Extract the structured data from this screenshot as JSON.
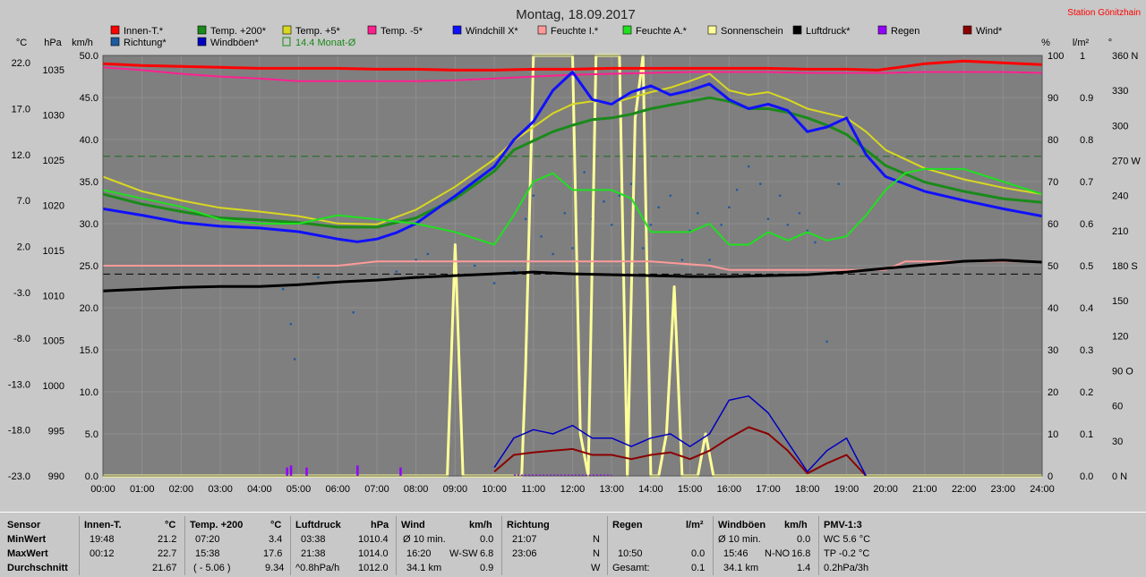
{
  "title": "Montag, 18.09.2017",
  "station": "Station Gönitzhain",
  "colors": {
    "innen": "#ff0000",
    "richtung": "#1e5aa0",
    "temp200": "#1a8a1a",
    "windboeen": "#0000c0",
    "temp5": "#d8d820",
    "monat": "#1a8a1a",
    "tempm5": "#ff2090",
    "windchill": "#1010ff",
    "feuchtei": "#ff9a9a",
    "feuchtea": "#20e020",
    "sonne": "#ffff99",
    "luftdruck": "#000000",
    "regen": "#9400ff",
    "wind": "#8b0000",
    "plot_bg": "#7f7f7f"
  },
  "legend": [
    {
      "label": "Innen-T.*",
      "color": "#ff0000"
    },
    {
      "label": "Temp. +200*",
      "color": "#1a8a1a"
    },
    {
      "label": "Temp. +5*",
      "color": "#d8d820"
    },
    {
      "label": "Temp. -5*",
      "color": "#ff2090"
    },
    {
      "label": "Windchill X*",
      "color": "#1010ff"
    },
    {
      "label": "Feuchte I.*",
      "color": "#ff9a9a"
    },
    {
      "label": "Feuchte A.*",
      "color": "#20e020"
    },
    {
      "label": "Sonnenschein",
      "color": "#ffff99"
    },
    {
      "label": "Luftdruck*",
      "color": "#000000"
    },
    {
      "label": "Regen",
      "color": "#9400ff"
    },
    {
      "label": "Wind*",
      "color": "#8b0000"
    },
    {
      "label": "Richtung*",
      "color": "#1e5aa0"
    },
    {
      "label": "Windböen*",
      "color": "#0000c0"
    },
    {
      "label": "14.4 Monat-Ø",
      "color": "#1a8a1a"
    }
  ],
  "chart_data": {
    "type": "line",
    "axes": {
      "units": {
        "degc": "°C",
        "hpa": "hPa",
        "kmh": "km/h",
        "pct": "%",
        "lm2": "l/m²",
        "deg": "°"
      },
      "degc_ticks": [
        "22.0",
        "17.0",
        "12.0",
        "7.0",
        "2.0",
        "-3.0",
        "-8.0",
        "-13.0",
        "-18.0",
        "-23.0"
      ],
      "hpa_ticks": [
        "1035",
        "1030",
        "1025",
        "1020",
        "1015",
        "1010",
        "1005",
        "1000",
        "995",
        "990"
      ],
      "kmh_ticks": [
        "50.0",
        "45.0",
        "40.0",
        "35.0",
        "30.0",
        "25.0",
        "20.0",
        "15.0",
        "10.0",
        "5.0",
        "0.0"
      ],
      "pct_ticks": [
        "100",
        "90",
        "80",
        "70",
        "60",
        "50",
        "40",
        "30",
        "20",
        "10",
        "0"
      ],
      "lm2_ticks": [
        "1",
        "0.9",
        "0.8",
        "0.7",
        "0.6",
        "0.5",
        "0.4",
        "0.3",
        "0.2",
        "0.1",
        "0.0"
      ],
      "deg_ticks": [
        "360 N",
        "330",
        "300",
        "270 W",
        "240",
        "210",
        "180 S",
        "150",
        "120",
        "90 O",
        "60",
        "30",
        "0 N"
      ],
      "x_ticks": [
        "00:00",
        "01:00",
        "02:00",
        "03:00",
        "04:00",
        "05:00",
        "06:00",
        "07:00",
        "08:00",
        "09:00",
        "10:00",
        "11:00",
        "12:00",
        "13:00",
        "14:00",
        "15:00",
        "16:00",
        "17:00",
        "18:00",
        "19:00",
        "20:00",
        "21:00",
        "22:00",
        "23:00",
        "24:00"
      ],
      "degc_range": [
        -23,
        22.8
      ],
      "hpa_range": [
        990,
        1036.6
      ],
      "kmh_range": [
        0,
        50
      ],
      "pct_range": [
        0,
        100
      ],
      "deg_range": [
        0,
        360
      ],
      "x_range": [
        0,
        24
      ]
    },
    "monat_avg_degc": 14.4,
    "ref_lines_kmh": [
      38.0,
      24.0
    ],
    "series": [
      {
        "name": "Innen-T.*",
        "axis": "degc",
        "color": "#ff0000",
        "width": 3,
        "x": [
          0,
          1,
          2,
          3,
          4,
          5,
          6,
          7,
          8,
          9,
          10,
          11,
          12,
          13,
          14,
          15,
          16,
          17,
          18,
          19,
          19.8,
          20.5,
          21,
          22,
          23,
          24
        ],
        "y": [
          21.9,
          21.7,
          21.6,
          21.5,
          21.4,
          21.4,
          21.4,
          21.3,
          21.3,
          21.2,
          21.2,
          21.3,
          21.3,
          21.4,
          21.4,
          21.4,
          21.4,
          21.4,
          21.3,
          21.3,
          21.2,
          21.6,
          21.9,
          22.2,
          22.0,
          21.8
        ]
      },
      {
        "name": "Temp. -5*",
        "axis": "degc",
        "color": "#ff2090",
        "width": 2,
        "x": [
          0,
          1,
          2,
          3,
          4,
          5,
          6,
          7,
          8,
          9,
          10,
          11,
          12,
          13,
          14,
          15,
          16,
          17,
          18,
          19,
          20,
          21,
          22,
          23,
          24
        ],
        "y": [
          21.5,
          21.2,
          20.8,
          20.5,
          20.3,
          20.0,
          20.0,
          20.0,
          20.0,
          20.1,
          20.3,
          20.5,
          20.7,
          20.8,
          20.9,
          21.0,
          21.0,
          21.0,
          20.9,
          20.9,
          20.9,
          21.0,
          21.0,
          21.0,
          20.9
        ]
      },
      {
        "name": "Feuchte I.*",
        "axis": "pct",
        "color": "#ff9a9a",
        "width": 2,
        "x": [
          0,
          2,
          4,
          6,
          7,
          8,
          10,
          12,
          14,
          15.5,
          16,
          18,
          19,
          20,
          20.5,
          21,
          22,
          24
        ],
        "y": [
          50,
          50,
          50,
          50,
          51,
          51,
          51,
          51,
          51,
          50,
          49,
          49,
          49,
          49,
          51,
          51,
          51,
          51
        ]
      },
      {
        "name": "Luftdruck*",
        "axis": "hpa",
        "color": "#000000",
        "width": 3,
        "x": [
          0,
          1,
          2,
          3,
          4,
          5,
          6,
          7,
          8,
          9,
          10,
          11,
          12,
          13,
          14,
          15,
          16,
          17,
          18,
          19,
          20,
          21,
          22,
          23,
          24
        ],
        "y": [
          1010.5,
          1010.7,
          1010.9,
          1011.0,
          1011.0,
          1011.2,
          1011.5,
          1011.7,
          1012.0,
          1012.2,
          1012.4,
          1012.6,
          1012.4,
          1012.3,
          1012.2,
          1012.1,
          1012.1,
          1012.2,
          1012.3,
          1012.6,
          1013.0,
          1013.4,
          1013.8,
          1013.9,
          1013.7
        ]
      },
      {
        "name": "Temp. +200*",
        "axis": "degc",
        "color": "#1a8a1a",
        "width": 3,
        "x": [
          0,
          1,
          2,
          3,
          4,
          5,
          6,
          7,
          8,
          9,
          10,
          10.5,
          11,
          11.5,
          12,
          12.5,
          13,
          13.5,
          14,
          14.5,
          15,
          15.5,
          16,
          16.5,
          17,
          17.5,
          18,
          18.5,
          19,
          19.5,
          20,
          21,
          22,
          23,
          24
        ],
        "y": [
          7.7,
          6.6,
          5.8,
          5.1,
          4.9,
          4.6,
          4.1,
          4.1,
          5.1,
          7.2,
          10.2,
          12.5,
          13.5,
          14.5,
          15.2,
          15.8,
          16.0,
          16.4,
          17.0,
          17.4,
          17.8,
          18.2,
          17.8,
          17.0,
          17.0,
          16.6,
          16.0,
          15.2,
          14.2,
          12.5,
          10.8,
          9.0,
          8.0,
          7.2,
          6.8
        ]
      },
      {
        "name": "Temp. +5*",
        "axis": "degc",
        "color": "#d8d820",
        "width": 2,
        "x": [
          0,
          1,
          2,
          3,
          4,
          5,
          6,
          7,
          8,
          9,
          10,
          10.5,
          11,
          11.5,
          12,
          12.5,
          13,
          13.5,
          14,
          14.5,
          15,
          15.5,
          16,
          16.5,
          17,
          17.5,
          18,
          18.5,
          19,
          19.5,
          20,
          21,
          22,
          23,
          24
        ],
        "y": [
          9.6,
          8.0,
          7.0,
          6.2,
          5.8,
          5.3,
          4.5,
          4.4,
          6.0,
          8.5,
          11.5,
          13.5,
          15.0,
          16.5,
          17.5,
          17.8,
          17.6,
          18.2,
          18.8,
          19.3,
          20.0,
          20.8,
          19.0,
          18.5,
          18.8,
          18.0,
          17.0,
          16.5,
          16.0,
          14.5,
          12.5,
          10.5,
          9.3,
          8.4,
          7.7
        ]
      },
      {
        "name": "Windchill X*",
        "axis": "degc",
        "color": "#1010ff",
        "width": 3,
        "x": [
          0,
          1,
          2,
          3,
          4,
          5,
          6,
          6.5,
          7,
          7.5,
          8,
          9,
          10,
          10.5,
          11,
          11.5,
          12,
          12.5,
          13,
          13.5,
          14,
          14.5,
          15,
          15.5,
          16,
          16.5,
          17,
          17.5,
          18,
          18.5,
          19,
          19.5,
          20,
          21,
          22,
          23,
          24
        ],
        "y": [
          6.1,
          5.4,
          4.6,
          4.2,
          4.0,
          3.6,
          2.8,
          2.5,
          2.8,
          3.5,
          4.5,
          7.5,
          10.7,
          13.6,
          15.6,
          19.0,
          21.0,
          18.0,
          17.5,
          18.8,
          19.5,
          18.5,
          19.0,
          19.7,
          18.0,
          17.0,
          17.5,
          16.8,
          14.5,
          15.0,
          16.0,
          12.0,
          9.6,
          8.0,
          7.0,
          6.1,
          5.3
        ]
      },
      {
        "name": "Feuchte A.*",
        "axis": "pct",
        "color": "#20e020",
        "width": 2,
        "x": [
          0,
          1,
          2,
          3,
          4,
          5,
          6,
          7,
          8,
          9,
          10,
          10.5,
          11,
          11.5,
          12,
          12.5,
          13,
          13.5,
          14,
          14.5,
          15,
          15.5,
          16,
          16.5,
          17,
          17.5,
          18,
          18.5,
          19,
          19.5,
          20,
          20.5,
          21,
          22,
          23,
          24
        ],
        "y": [
          68,
          66,
          64,
          61,
          60,
          60,
          62,
          61,
          60,
          58,
          55,
          62,
          70,
          72,
          68,
          68,
          68,
          66,
          58,
          58,
          58,
          60,
          55,
          55,
          58,
          56,
          58,
          56,
          57,
          62,
          68,
          72,
          73,
          73,
          70,
          67
        ]
      },
      {
        "name": "Wind*",
        "axis": "kmh",
        "color": "#8b0000",
        "width": 2,
        "x": [
          10,
          10.5,
          11,
          11.5,
          12,
          12.5,
          13,
          13.5,
          14,
          14.5,
          15,
          15.5,
          16,
          16.5,
          17,
          17.5,
          18,
          18.5,
          19,
          19.5
        ],
        "y": [
          0.5,
          2.5,
          2.8,
          3.0,
          3.2,
          2.5,
          2.5,
          2.0,
          2.5,
          2.8,
          2.0,
          3.0,
          4.5,
          5.8,
          5.0,
          3.0,
          0.3,
          1.5,
          2.5,
          0
        ]
      },
      {
        "name": "Windböen*",
        "axis": "kmh",
        "color": "#0000c0",
        "width": 1.5,
        "x": [
          10,
          10.5,
          11,
          11.5,
          12,
          12.5,
          13,
          13.5,
          14,
          14.5,
          15,
          15.5,
          16,
          16.5,
          17,
          17.5,
          18,
          18.5,
          19,
          19.5
        ],
        "y": [
          1.0,
          4.5,
          5.5,
          5.0,
          6.0,
          4.5,
          4.5,
          3.5,
          4.5,
          5.0,
          3.5,
          5.0,
          9.0,
          9.5,
          7.5,
          4.0,
          0.5,
          3.0,
          4.5,
          0
        ]
      }
    ],
    "sunshine": {
      "name": "Sonnenschein",
      "axis": "pct",
      "color": "#ffff99",
      "x": [
        0,
        8.8,
        9.0,
        9.2,
        9.4,
        9.6,
        10.0,
        10.5,
        10.7,
        10.8,
        11.0,
        11.2,
        11.4,
        11.5,
        11.8,
        12.0,
        12.2,
        12.4,
        12.6,
        12.8,
        13.0,
        13.2,
        13.4,
        13.6,
        13.8,
        14.0,
        14.2,
        14.4,
        14.6,
        14.8,
        15.0,
        15.2,
        15.4,
        15.6,
        16,
        24
      ],
      "y": [
        0,
        0,
        55,
        0,
        0,
        0,
        0,
        0,
        0,
        25,
        100,
        100,
        100,
        100,
        100,
        100,
        10,
        0,
        100,
        100,
        100,
        100,
        0,
        85,
        100,
        0,
        0,
        10,
        45,
        0,
        0,
        0,
        10,
        0,
        0,
        0
      ]
    },
    "direction_deg": {
      "name": "Richtung*",
      "color": "#1e5aa0",
      "x": [
        4.6,
        4.8,
        4.9,
        5.5,
        6.4,
        7.5,
        8.0,
        8.3,
        9.5,
        10.0,
        10.5,
        10.8,
        11.0,
        11.2,
        11.5,
        11.8,
        12.0,
        12.3,
        12.5,
        12.8,
        13.0,
        13.2,
        13.5,
        13.8,
        14.0,
        14.2,
        14.5,
        14.8,
        15.0,
        15.2,
        15.5,
        15.8,
        16.0,
        16.2,
        16.5,
        16.8,
        17.0,
        17.3,
        17.5,
        17.8,
        18.0,
        18.2,
        18.5,
        18.8
      ],
      "y": [
        160,
        130,
        100,
        170,
        140,
        175,
        185,
        190,
        180,
        165,
        175,
        220,
        240,
        205,
        190,
        225,
        195,
        260,
        220,
        235,
        215,
        240,
        250,
        195,
        215,
        230,
        240,
        185,
        210,
        225,
        185,
        215,
        230,
        245,
        265,
        250,
        220,
        240,
        215,
        225,
        210,
        200,
        115,
        250
      ]
    },
    "rain_lm2": {
      "name": "Regen",
      "color": "#9400ff",
      "x": [
        4.7,
        4.8,
        5.2,
        6.5,
        7.6
      ],
      "y": [
        0.02,
        0.025,
        0.02,
        0.025,
        0.02
      ]
    }
  },
  "table": {
    "rows": [
      "Sensor",
      "MinWert",
      "MaxWert",
      "Durchschnitt"
    ],
    "innen": {
      "head": "Innen-T.",
      "unit": "°C",
      "min_time": "19:48",
      "min": "21.2",
      "max_time": "00:12",
      "max": "22.7",
      "avg": "21.67"
    },
    "temp": {
      "head": "Temp. +200",
      "unit": "°C",
      "min_time": "07:20",
      "min": "3.4",
      "max_time": "15:38",
      "max": "17.6",
      "avg_label": "( - 5.06 )",
      "avg": "9.34"
    },
    "luft": {
      "head": "Luftdruck",
      "unit": "hPa",
      "min_time": "03:38",
      "min": "1010.4",
      "max_time": "21:38",
      "max": "1014.0",
      "avg_label": "^0.8hPa/h",
      "avg": "1012.0"
    },
    "wind": {
      "head": "Wind",
      "unit": "km/h",
      "min_label": "Ø 10 min.",
      "min": "0.0",
      "max_time": "16:20",
      "max_dir": "W-SW",
      "max": "6.8",
      "avg_label": "34.1 km",
      "avg": "0.9"
    },
    "richtung": {
      "head": "Richtung",
      "min_time": "21:07",
      "min": "N",
      "max_time": "23:06",
      "max": "N",
      "avg": "W"
    },
    "regen": {
      "head": "Regen",
      "unit": "l/m²",
      "max_time": "10:50",
      "max": "0.0",
      "avg_label": "Gesamt:",
      "avg": "0.1"
    },
    "boeen": {
      "head": "Windböen",
      "unit": "km/h",
      "min_label": "Ø 10 min.",
      "min": "0.0",
      "max_time": "15:46",
      "max_dir": "N-NO",
      "max": "16.8",
      "avg_label": "34.1 km",
      "avg": "1.4"
    },
    "pmv": {
      "head": "PMV-1:3",
      "min": "WC 5.6 °C",
      "max": "TP -0.2 °C",
      "avg": "0.2hPa/3h"
    }
  }
}
